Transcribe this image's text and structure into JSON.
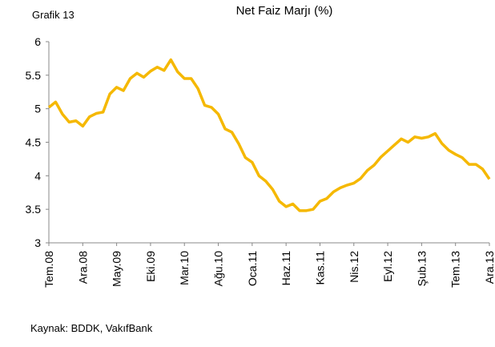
{
  "chart_data": {
    "type": "line",
    "label": "Grafik 13",
    "title": "Net Faiz Marjı (%)",
    "source": "Kaynak: BDDK, VakıfBank",
    "categories": [
      "Tem.08",
      null,
      null,
      null,
      null,
      "Ara.08",
      null,
      null,
      null,
      null,
      "May.09",
      null,
      null,
      null,
      null,
      "Eki.09",
      null,
      null,
      null,
      null,
      "Mar.10",
      null,
      null,
      null,
      null,
      "Ağu.10",
      null,
      null,
      null,
      null,
      "Oca.11",
      null,
      null,
      null,
      null,
      "Haz.11",
      null,
      null,
      null,
      null,
      "Kas.11",
      null,
      null,
      null,
      null,
      "Nis.12",
      null,
      null,
      null,
      null,
      "Eyl.12",
      null,
      null,
      null,
      null,
      "Şub.13",
      null,
      null,
      null,
      null,
      "Tem.13",
      null,
      null,
      null,
      null,
      "Ara.13"
    ],
    "values": [
      5.02,
      5.1,
      4.92,
      4.8,
      4.82,
      4.74,
      4.88,
      4.93,
      4.95,
      5.22,
      5.32,
      5.27,
      5.45,
      5.53,
      5.47,
      5.56,
      5.62,
      5.57,
      5.73,
      5.55,
      5.45,
      5.45,
      5.3,
      5.05,
      5.02,
      4.92,
      4.7,
      4.65,
      4.48,
      4.27,
      4.2,
      4.0,
      3.92,
      3.8,
      3.62,
      3.54,
      3.58,
      3.48,
      3.48,
      3.5,
      3.62,
      3.66,
      3.76,
      3.82,
      3.86,
      3.89,
      3.96,
      4.08,
      4.16,
      4.28,
      4.37,
      4.46,
      4.55,
      4.5,
      4.58,
      4.56,
      4.58,
      4.63,
      4.48,
      4.38,
      4.32,
      4.27,
      4.17,
      4.17,
      4.1,
      3.95
    ],
    "color": "#f5b800",
    "ylim": [
      3,
      6
    ],
    "yticks": [
      3,
      3.5,
      4,
      4.5,
      5,
      5.5,
      6
    ],
    "grid": false
  }
}
